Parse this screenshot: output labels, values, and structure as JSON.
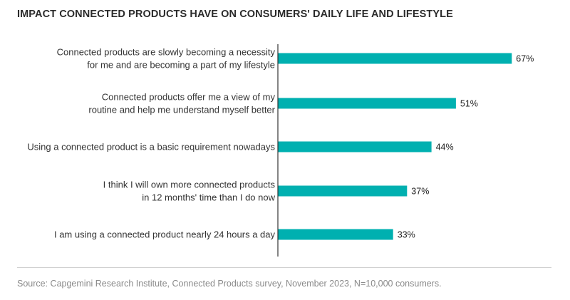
{
  "chart_data": {
    "type": "bar",
    "orientation": "horizontal",
    "title": "IMPACT CONNECTED PRODUCTS HAVE ON CONSUMERS' DAILY LIFE AND LIFESTYLE",
    "categories": [
      [
        "Connected products are slowly becoming a necessity",
        "for me and are becoming a part of my lifestyle"
      ],
      [
        "Connected products offer me a view of my",
        "routine and help me understand myself better"
      ],
      [
        "Using a connected product is a basic requirement nowadays"
      ],
      [
        "I think I will own more connected products",
        "in 12 months' time than I do now"
      ],
      [
        "I am using a connected product nearly 24 hours a day"
      ]
    ],
    "values": [
      67,
      51,
      44,
      37,
      33
    ],
    "value_labels": [
      "67%",
      "51%",
      "44%",
      "37%",
      "33%"
    ],
    "xlim": [
      0,
      100
    ],
    "bar_color": "#00b0b0",
    "axis_color": "#333333",
    "grid": false
  },
  "source": "Source: Capgemini Research Institute, Connected Products survey, November 2023, N=10,000 consumers."
}
